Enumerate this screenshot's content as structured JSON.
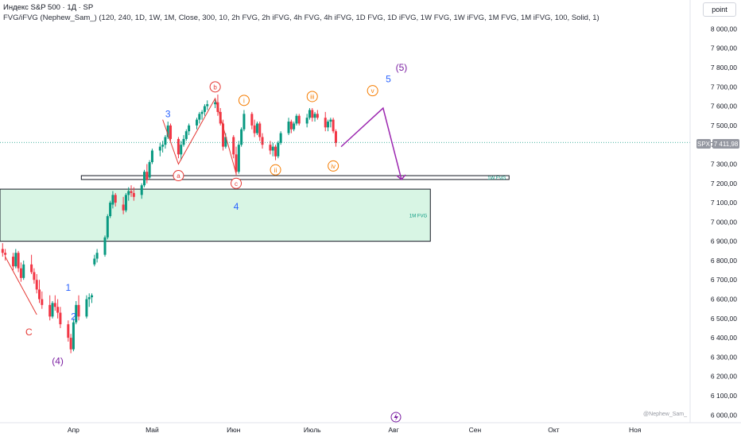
{
  "header": {
    "title": "Индекс S&P 500 · 1Д · SP",
    "indicator": "FVG/iFVG (Nephew_Sam_) (120, 240, 1D, 1W, 1M, Close, 300, 10, 2h FVG, 2h iFVG, 4h FVG, 4h iFVG, 1D FVG, 1D iFVG, 1W FVG, 1W iFVG, 1M FVG, 1M iFVG, 100, Solid, 1)"
  },
  "scale_button": "point",
  "symbol_tag": "SPX",
  "price_tag": "7 411,98",
  "watermark": "@Nephew_Sam_",
  "zone_labels": {
    "monthly": "1M FVG",
    "weekly": "1W FVG"
  },
  "colors": {
    "up": "#089981",
    "down": "#f23645",
    "fvg_fill": "#d8f5e4",
    "wave_blue": "#2962ff",
    "wave_purple": "#7b1fa2",
    "wave_red": "#e53935",
    "wave_orange": "#f57c00",
    "price_tag_bg": "#9598a1",
    "projection": "#9c27b0"
  },
  "chart_data": {
    "type": "candlestick",
    "ylim": [
      5960,
      8150
    ],
    "y_ticks": [
      "8 000,00",
      "7 900,00",
      "7 800,00",
      "7 700,00",
      "7 600,00",
      "7 500,00",
      "7 400,00",
      "7 300,00",
      "7 200,00",
      "7 100,00",
      "7 000,00",
      "6 900,00",
      "6 800,00",
      "6 700,00",
      "6 600,00",
      "6 500,00",
      "6 400,00",
      "6 300,00",
      "6 200,00",
      "6 100,00",
      "6 000,00"
    ],
    "y_tick_values": [
      8000,
      7900,
      7800,
      7700,
      7600,
      7500,
      7400,
      7300,
      7200,
      7100,
      7000,
      6900,
      6800,
      6700,
      6600,
      6500,
      6400,
      6300,
      6200,
      6100,
      6000
    ],
    "x_ticks": [
      {
        "label": "Апр",
        "day": 24
      },
      {
        "label": "Май",
        "day": 54
      },
      {
        "label": "Июн",
        "day": 85
      },
      {
        "label": "Июль",
        "day": 115
      },
      {
        "label": "Авг",
        "day": 146
      },
      {
        "label": "Сен",
        "day": 177
      },
      {
        "label": "Окт",
        "day": 207
      },
      {
        "label": "Ноя",
        "day": 238
      }
    ],
    "x_range_days": [
      -4,
      259
    ],
    "candles": [
      {
        "d": -3,
        "o": 6860,
        "h": 6890,
        "l": 6820,
        "c": 6840
      },
      {
        "d": -2,
        "o": 6840,
        "h": 6860,
        "l": 6800,
        "c": 6830
      },
      {
        "d": 1,
        "o": 6820,
        "h": 6840,
        "l": 6750,
        "c": 6770
      },
      {
        "d": 2,
        "o": 6770,
        "h": 6860,
        "l": 6760,
        "c": 6840
      },
      {
        "d": 3,
        "o": 6840,
        "h": 6850,
        "l": 6740,
        "c": 6760
      },
      {
        "d": 4,
        "o": 6760,
        "h": 6790,
        "l": 6690,
        "c": 6710
      },
      {
        "d": 5,
        "o": 6710,
        "h": 6800,
        "l": 6700,
        "c": 6780
      },
      {
        "d": 8,
        "o": 6780,
        "h": 6830,
        "l": 6730,
        "c": 6740
      },
      {
        "d": 9,
        "o": 6740,
        "h": 6760,
        "l": 6680,
        "c": 6700
      },
      {
        "d": 10,
        "o": 6700,
        "h": 6730,
        "l": 6630,
        "c": 6650
      },
      {
        "d": 11,
        "o": 6650,
        "h": 6700,
        "l": 6580,
        "c": 6600
      },
      {
        "d": 12,
        "o": 6600,
        "h": 6640,
        "l": 6550,
        "c": 6570
      },
      {
        "d": 15,
        "o": 6570,
        "h": 6620,
        "l": 6490,
        "c": 6510
      },
      {
        "d": 16,
        "o": 6510,
        "h": 6590,
        "l": 6500,
        "c": 6580
      },
      {
        "d": 17,
        "o": 6580,
        "h": 6620,
        "l": 6540,
        "c": 6560
      },
      {
        "d": 18,
        "o": 6560,
        "h": 6600,
        "l": 6500,
        "c": 6530
      },
      {
        "d": 19,
        "o": 6530,
        "h": 6560,
        "l": 6450,
        "c": 6470
      },
      {
        "d": 22,
        "o": 6470,
        "h": 6490,
        "l": 6380,
        "c": 6400
      },
      {
        "d": 23,
        "o": 6400,
        "h": 6420,
        "l": 6320,
        "c": 6340
      },
      {
        "d": 24,
        "o": 6340,
        "h": 6500,
        "l": 6330,
        "c": 6480
      },
      {
        "d": 25,
        "o": 6480,
        "h": 6590,
        "l": 6470,
        "c": 6570
      },
      {
        "d": 26,
        "o": 6570,
        "h": 6620,
        "l": 6490,
        "c": 6510
      },
      {
        "d": 29,
        "o": 6510,
        "h": 6620,
        "l": 6500,
        "c": 6600
      },
      {
        "d": 30,
        "o": 6600,
        "h": 6630,
        "l": 6560,
        "c": 6610
      },
      {
        "d": 31,
        "o": 6610,
        "h": 6630,
        "l": 6580,
        "c": 6620
      },
      {
        "d": 32,
        "o": 6780,
        "h": 6830,
        "l": 6770,
        "c": 6810
      },
      {
        "d": 33,
        "o": 6810,
        "h": 6860,
        "l": 6790,
        "c": 6840
      },
      {
        "d": 36,
        "o": 6830,
        "h": 6930,
        "l": 6820,
        "c": 6920
      },
      {
        "d": 37,
        "o": 6920,
        "h": 7040,
        "l": 6910,
        "c": 7030
      },
      {
        "d": 38,
        "o": 7030,
        "h": 7110,
        "l": 7020,
        "c": 7100
      },
      {
        "d": 39,
        "o": 7090,
        "h": 7160,
        "l": 7070,
        "c": 7140
      },
      {
        "d": 40,
        "o": 7140,
        "h": 7150,
        "l": 7080,
        "c": 7100
      },
      {
        "d": 43,
        "o": 7090,
        "h": 7130,
        "l": 7040,
        "c": 7060
      },
      {
        "d": 44,
        "o": 7060,
        "h": 7150,
        "l": 7050,
        "c": 7140
      },
      {
        "d": 45,
        "o": 7140,
        "h": 7180,
        "l": 7110,
        "c": 7160
      },
      {
        "d": 46,
        "o": 7160,
        "h": 7190,
        "l": 7130,
        "c": 7150
      },
      {
        "d": 47,
        "o": 7150,
        "h": 7180,
        "l": 7110,
        "c": 7130
      },
      {
        "d": 50,
        "o": 7140,
        "h": 7200,
        "l": 7120,
        "c": 7190
      },
      {
        "d": 51,
        "o": 7190,
        "h": 7270,
        "l": 7180,
        "c": 7260
      },
      {
        "d": 52,
        "o": 7260,
        "h": 7300,
        "l": 7200,
        "c": 7220
      },
      {
        "d": 53,
        "o": 7230,
        "h": 7320,
        "l": 7220,
        "c": 7310
      },
      {
        "d": 54,
        "o": 7310,
        "h": 7380,
        "l": 7300,
        "c": 7370
      },
      {
        "d": 57,
        "o": 7370,
        "h": 7410,
        "l": 7340,
        "c": 7390
      },
      {
        "d": 58,
        "o": 7390,
        "h": 7420,
        "l": 7360,
        "c": 7400
      },
      {
        "d": 59,
        "o": 7400,
        "h": 7450,
        "l": 7380,
        "c": 7440
      },
      {
        "d": 60,
        "o": 7440,
        "h": 7520,
        "l": 7430,
        "c": 7500
      },
      {
        "d": 61,
        "o": 7500,
        "h": 7510,
        "l": 7420,
        "c": 7430
      },
      {
        "d": 64,
        "o": 7430,
        "h": 7440,
        "l": 7330,
        "c": 7350
      },
      {
        "d": 65,
        "o": 7350,
        "h": 7420,
        "l": 7320,
        "c": 7400
      },
      {
        "d": 66,
        "o": 7400,
        "h": 7450,
        "l": 7390,
        "c": 7430
      },
      {
        "d": 67,
        "o": 7430,
        "h": 7480,
        "l": 7420,
        "c": 7470
      },
      {
        "d": 68,
        "o": 7470,
        "h": 7510,
        "l": 7450,
        "c": 7500
      },
      {
        "d": 71,
        "o": 7500,
        "h": 7540,
        "l": 7480,
        "c": 7530
      },
      {
        "d": 72,
        "o": 7530,
        "h": 7570,
        "l": 7510,
        "c": 7560
      },
      {
        "d": 73,
        "o": 7560,
        "h": 7580,
        "l": 7530,
        "c": 7570
      },
      {
        "d": 74,
        "o": 7570,
        "h": 7610,
        "l": 7550,
        "c": 7600
      },
      {
        "d": 75,
        "o": 7600,
        "h": 7630,
        "l": 7580,
        "c": 7610
      },
      {
        "d": 78,
        "o": 7610,
        "h": 7640,
        "l": 7590,
        "c": 7620
      },
      {
        "d": 79,
        "o": 7620,
        "h": 7660,
        "l": 7550,
        "c": 7570
      },
      {
        "d": 80,
        "o": 7570,
        "h": 7590,
        "l": 7500,
        "c": 7510
      },
      {
        "d": 81,
        "o": 7510,
        "h": 7530,
        "l": 7370,
        "c": 7390
      },
      {
        "d": 82,
        "o": 7390,
        "h": 7460,
        "l": 7380,
        "c": 7440
      },
      {
        "d": 85,
        "o": 7440,
        "h": 7450,
        "l": 7330,
        "c": 7350
      },
      {
        "d": 86,
        "o": 7350,
        "h": 7390,
        "l": 7240,
        "c": 7260
      },
      {
        "d": 87,
        "o": 7260,
        "h": 7420,
        "l": 7250,
        "c": 7400
      },
      {
        "d": 88,
        "o": 7400,
        "h": 7490,
        "l": 7390,
        "c": 7480
      },
      {
        "d": 89,
        "o": 7480,
        "h": 7580,
        "l": 7470,
        "c": 7560
      },
      {
        "d": 92,
        "o": 7560,
        "h": 7570,
        "l": 7480,
        "c": 7500
      },
      {
        "d": 93,
        "o": 7500,
        "h": 7530,
        "l": 7440,
        "c": 7460
      },
      {
        "d": 94,
        "o": 7460,
        "h": 7520,
        "l": 7450,
        "c": 7510
      },
      {
        "d": 95,
        "o": 7510,
        "h": 7520,
        "l": 7420,
        "c": 7440
      },
      {
        "d": 96,
        "o": 7440,
        "h": 7460,
        "l": 7380,
        "c": 7400
      },
      {
        "d": 99,
        "o": 7400,
        "h": 7420,
        "l": 7350,
        "c": 7370
      },
      {
        "d": 100,
        "o": 7370,
        "h": 7410,
        "l": 7340,
        "c": 7390
      },
      {
        "d": 101,
        "o": 7390,
        "h": 7400,
        "l": 7320,
        "c": 7340
      },
      {
        "d": 102,
        "o": 7340,
        "h": 7420,
        "l": 7330,
        "c": 7410
      },
      {
        "d": 103,
        "o": 7410,
        "h": 7470,
        "l": 7400,
        "c": 7460
      },
      {
        "d": 106,
        "o": 7460,
        "h": 7540,
        "l": 7450,
        "c": 7520
      },
      {
        "d": 107,
        "o": 7520,
        "h": 7530,
        "l": 7460,
        "c": 7480
      },
      {
        "d": 108,
        "o": 7480,
        "h": 7520,
        "l": 7470,
        "c": 7510
      },
      {
        "d": 109,
        "o": 7510,
        "h": 7560,
        "l": 7500,
        "c": 7550
      },
      {
        "d": 110,
        "o": 7550,
        "h": 7560,
        "l": 7500,
        "c": 7510
      },
      {
        "d": 113,
        "o": 7510,
        "h": 7560,
        "l": 7490,
        "c": 7540
      },
      {
        "d": 114,
        "o": 7540,
        "h": 7590,
        "l": 7530,
        "c": 7580
      },
      {
        "d": 115,
        "o": 7580,
        "h": 7590,
        "l": 7520,
        "c": 7540
      },
      {
        "d": 116,
        "o": 7540,
        "h": 7570,
        "l": 7520,
        "c": 7560
      },
      {
        "d": 117,
        "o": 7560,
        "h": 7580,
        "l": 7530,
        "c": 7540
      },
      {
        "d": 120,
        "o": 7540,
        "h": 7570,
        "l": 7470,
        "c": 7490
      },
      {
        "d": 121,
        "o": 7490,
        "h": 7530,
        "l": 7470,
        "c": 7520
      },
      {
        "d": 122,
        "o": 7520,
        "h": 7540,
        "l": 7490,
        "c": 7530
      },
      {
        "d": 123,
        "o": 7530,
        "h": 7540,
        "l": 7460,
        "c": 7470
      },
      {
        "d": 124,
        "o": 7470,
        "h": 7480,
        "l": 7390,
        "c": 7410
      }
    ],
    "fvg_zones": [
      {
        "label": "1M FVG",
        "from_day": -4,
        "to_day": 160,
        "top": 7170,
        "bottom": 6900
      },
      {
        "label": "1W FVG",
        "from_day": 27,
        "to_day": 190,
        "top": 7240,
        "bottom": 7220
      }
    ],
    "last_price": 7411.98,
    "projection_path": [
      {
        "day": 126,
        "price": 7390
      },
      {
        "day": 142,
        "price": 7590
      },
      {
        "day": 149,
        "price": 7220
      }
    ],
    "wave_labels": [
      {
        "text": "C",
        "day": 7,
        "price": 6430,
        "color": "wave_red",
        "circled": false
      },
      {
        "text": "(4)",
        "day": 18,
        "price": 6280,
        "color": "wave_purple",
        "circled": false
      },
      {
        "text": "1",
        "day": 22,
        "price": 6660,
        "color": "wave_blue",
        "circled": false
      },
      {
        "text": "2",
        "day": 24,
        "price": 6510,
        "color": "wave_blue",
        "circled": false
      },
      {
        "text": "3",
        "day": 60,
        "price": 7560,
        "color": "wave_blue",
        "circled": false
      },
      {
        "text": "a",
        "day": 64,
        "price": 7240,
        "color": "wave_red",
        "circled": true
      },
      {
        "text": "b",
        "day": 78,
        "price": 7700,
        "color": "wave_red",
        "circled": true
      },
      {
        "text": "c",
        "day": 86,
        "price": 7200,
        "color": "wave_red",
        "circled": true
      },
      {
        "text": "4",
        "day": 86,
        "price": 7080,
        "color": "wave_blue",
        "circled": false
      },
      {
        "text": "i",
        "day": 89,
        "price": 7630,
        "color": "wave_orange",
        "circled": true
      },
      {
        "text": "ii",
        "day": 101,
        "price": 7270,
        "color": "wave_orange",
        "circled": true
      },
      {
        "text": "iii",
        "day": 115,
        "price": 7650,
        "color": "wave_orange",
        "circled": true
      },
      {
        "text": "iv",
        "day": 123,
        "price": 7290,
        "color": "wave_orange",
        "circled": true
      },
      {
        "text": "v",
        "day": 138,
        "price": 7680,
        "color": "wave_orange",
        "circled": true
      },
      {
        "text": "5",
        "day": 144,
        "price": 7740,
        "color": "wave_blue",
        "circled": false
      },
      {
        "text": "(5)",
        "day": 149,
        "price": 7800,
        "color": "wave_purple",
        "circled": false
      }
    ],
    "wave_lines": [
      {
        "color": "wave_red",
        "points": [
          {
            "day": -2,
            "price": 6820
          },
          {
            "day": 10,
            "price": 6520
          }
        ]
      },
      {
        "color": "wave_red",
        "points": [
          {
            "day": 58,
            "price": 7530
          },
          {
            "day": 64,
            "price": 7300
          },
          {
            "day": 78,
            "price": 7640
          },
          {
            "day": 86,
            "price": 7250
          }
        ]
      }
    ]
  }
}
